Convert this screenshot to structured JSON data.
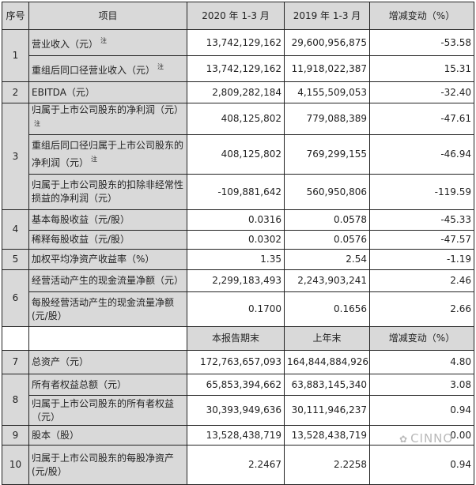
{
  "header": {
    "seq": "序号",
    "item": "项目",
    "col1": "2020 年 1-3 月",
    "col2": "2019 年 1-3 月",
    "col3": "增减变动（%）"
  },
  "header2": {
    "col1": "本报告期末",
    "col2": "上年末",
    "col3": "增减变动（%）"
  },
  "note_mark": "注",
  "rows": [
    {
      "seq": "1",
      "item": "营业收入（元）",
      "note": true,
      "v1": "13,742,129,162",
      "v2": "29,600,956,875",
      "v3": "-53.58"
    },
    {
      "seq": "",
      "item": "重组后同口径营业收入（元）",
      "note": true,
      "v1": "13,742,129,162",
      "v2": "11,918,022,387",
      "v3": "15.31"
    },
    {
      "seq": "2",
      "item": "EBITDA（元）",
      "v1": "2,809,282,184",
      "v2": "4,155,509,053",
      "v3": "-32.40"
    },
    {
      "seq": "3",
      "item": "归属于上市公司股东的净利润（元）",
      "note": true,
      "v1": "408,125,802",
      "v2": "779,088,389",
      "v3": "-47.61"
    },
    {
      "seq": "",
      "item": "重组后同口径归属于上市公司股东的净利润（元）",
      "note": true,
      "v1": "408,125,802",
      "v2": "769,299,155",
      "v3": "-46.94"
    },
    {
      "seq": "",
      "item": "归属于上市公司股东的扣除非经常性损益的净利润（元）",
      "v1": "-109,881,642",
      "v2": "560,950,806",
      "v3": "-119.59"
    },
    {
      "seq": "4",
      "item": "基本每股收益（元/股）",
      "v1": "0.0316",
      "v2": "0.0578",
      "v3": "-45.33"
    },
    {
      "seq": "",
      "item": "稀释每股收益（元/股）",
      "v1": "0.0302",
      "v2": "0.0576",
      "v3": "-47.57"
    },
    {
      "seq": "5",
      "item": "加权平均净资产收益率（%）",
      "v1": "1.35",
      "v2": "2.54",
      "v3": "-1.19"
    },
    {
      "seq": "6",
      "item": "经营活动产生的现金流量净额（元）",
      "v1": "2,299,183,493",
      "v2": "2,243,903,241",
      "v3": "2.46"
    },
    {
      "seq": "",
      "item": "每股经营活动产生的现金流量净额(元/股）",
      "v1": "0.1700",
      "v2": "0.1656",
      "v3": "2.66"
    },
    {
      "seq": "7",
      "item": "总资产（元）",
      "v1": "172,763,657,093",
      "v2": "164,844,884,926",
      "v3": "4.80"
    },
    {
      "seq": "8",
      "item": "所有者权益总额（元）",
      "v1": "65,853,394,662",
      "v2": "63,883,145,340",
      "v3": "3.08"
    },
    {
      "seq": "",
      "item": "归属于上市公司股东的所有者权益（元）",
      "v1": "30,393,949,636",
      "v2": "30,111,946,237",
      "v3": "0.94"
    },
    {
      "seq": "9",
      "item": "股本（股）",
      "v1": "13,528,438,719",
      "v2": "13,528,438,719",
      "v3": "0.00"
    },
    {
      "seq": "10",
      "item": "归属于上市公司股东的每股净资产(元/股）",
      "v1": "2.2467",
      "v2": "2.2258",
      "v3": "0.94"
    }
  ],
  "watermark": "CINNO"
}
